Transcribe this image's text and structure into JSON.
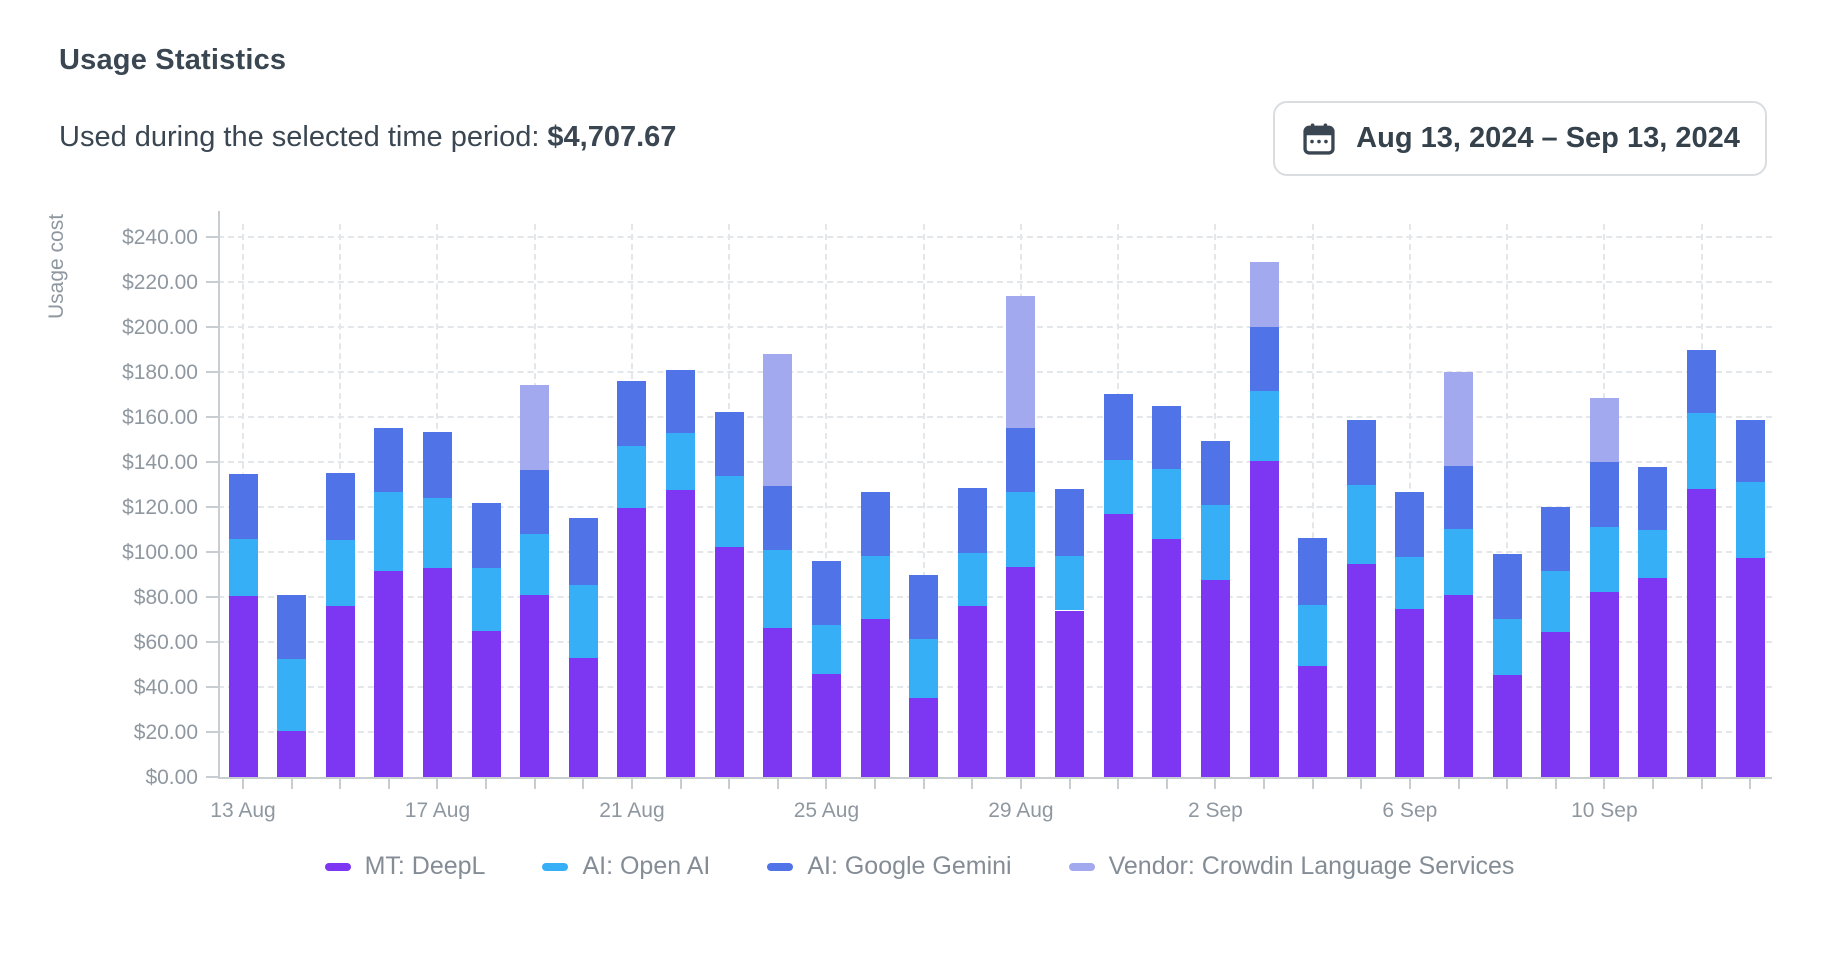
{
  "header": {
    "title": "Usage Statistics",
    "subtitle_label": "Used during the selected time period:",
    "subtitle_value": "$4,707.67",
    "date_range": {
      "icon": "calendar-icon",
      "label": "Aug 13, 2024 – Sep 13, 2024"
    }
  },
  "chart_data": {
    "type": "bar",
    "stacked": true,
    "title": "",
    "ylabel": "Usage cost",
    "xlabel": "",
    "ylim": [
      0,
      240
    ],
    "ytick_step": 20,
    "ytick_prefix": "$",
    "grid": "dashed",
    "legend_position": "bottom",
    "categories": [
      "13 Aug",
      "14 Aug",
      "15 Aug",
      "16 Aug",
      "17 Aug",
      "18 Aug",
      "19 Aug",
      "20 Aug",
      "21 Aug",
      "22 Aug",
      "23 Aug",
      "24 Aug",
      "25 Aug",
      "26 Aug",
      "27 Aug",
      "28 Aug",
      "29 Aug",
      "30 Aug",
      "31 Aug",
      "1 Sep",
      "2 Sep",
      "3 Sep",
      "4 Sep",
      "5 Sep",
      "6 Sep",
      "7 Sep",
      "8 Sep",
      "9 Sep",
      "10 Sep",
      "11 Sep",
      "12 Sep",
      "13 Sep"
    ],
    "xtick_label_every": 4,
    "series": [
      {
        "name": "MT: DeepL",
        "color": "#7D36F1",
        "values": [
          80.4,
          20.3,
          75.8,
          91.5,
          92.7,
          64.7,
          80.7,
          53.0,
          119.5,
          127.5,
          102.1,
          66.3,
          46.0,
          70.4,
          35.1,
          76.1,
          93.2,
          74.0,
          116.7,
          105.7,
          87.5,
          140.3,
          49.3,
          94.8,
          74.8,
          80.7,
          45.5,
          64.4,
          82.1,
          88.6,
          128.1,
          97.4
        ]
      },
      {
        "name": "AI: Open AI",
        "color": "#37AFF7",
        "values": [
          25.4,
          32.0,
          29.5,
          35.3,
          31.4,
          28.0,
          27.1,
          32.5,
          27.7,
          25.5,
          31.7,
          34.5,
          21.5,
          28.0,
          26.4,
          23.6,
          33.3,
          24.4,
          24.4,
          31.0,
          33.3,
          31.4,
          27.1,
          35.0,
          23.2,
          29.5,
          24.9,
          27.1,
          28.9,
          21.0,
          33.5,
          33.6
        ]
      },
      {
        "name": "AI: Google Gemini",
        "color": "#5173E8",
        "values": [
          29.0,
          28.4,
          29.8,
          28.2,
          29.2,
          28.9,
          28.8,
          29.6,
          28.9,
          28.0,
          28.5,
          28.6,
          28.4,
          28.4,
          28.1,
          28.8,
          28.8,
          29.4,
          29.1,
          28.3,
          28.5,
          28.3,
          29.8,
          28.7,
          28.5,
          28.2,
          28.9,
          28.5,
          28.8,
          28.0,
          28.2,
          27.8
        ]
      },
      {
        "name": "Vendor: Crowdin Language Services",
        "color": "#A2A9EF",
        "values": [
          0,
          0,
          0,
          0,
          0,
          0,
          37.5,
          0,
          0,
          0,
          0,
          58.6,
          0,
          0,
          0,
          0,
          58.5,
          0,
          0,
          0,
          0,
          29.0,
          0,
          0,
          0,
          41.8,
          0,
          0,
          28.5,
          0,
          0,
          0
        ]
      }
    ]
  }
}
